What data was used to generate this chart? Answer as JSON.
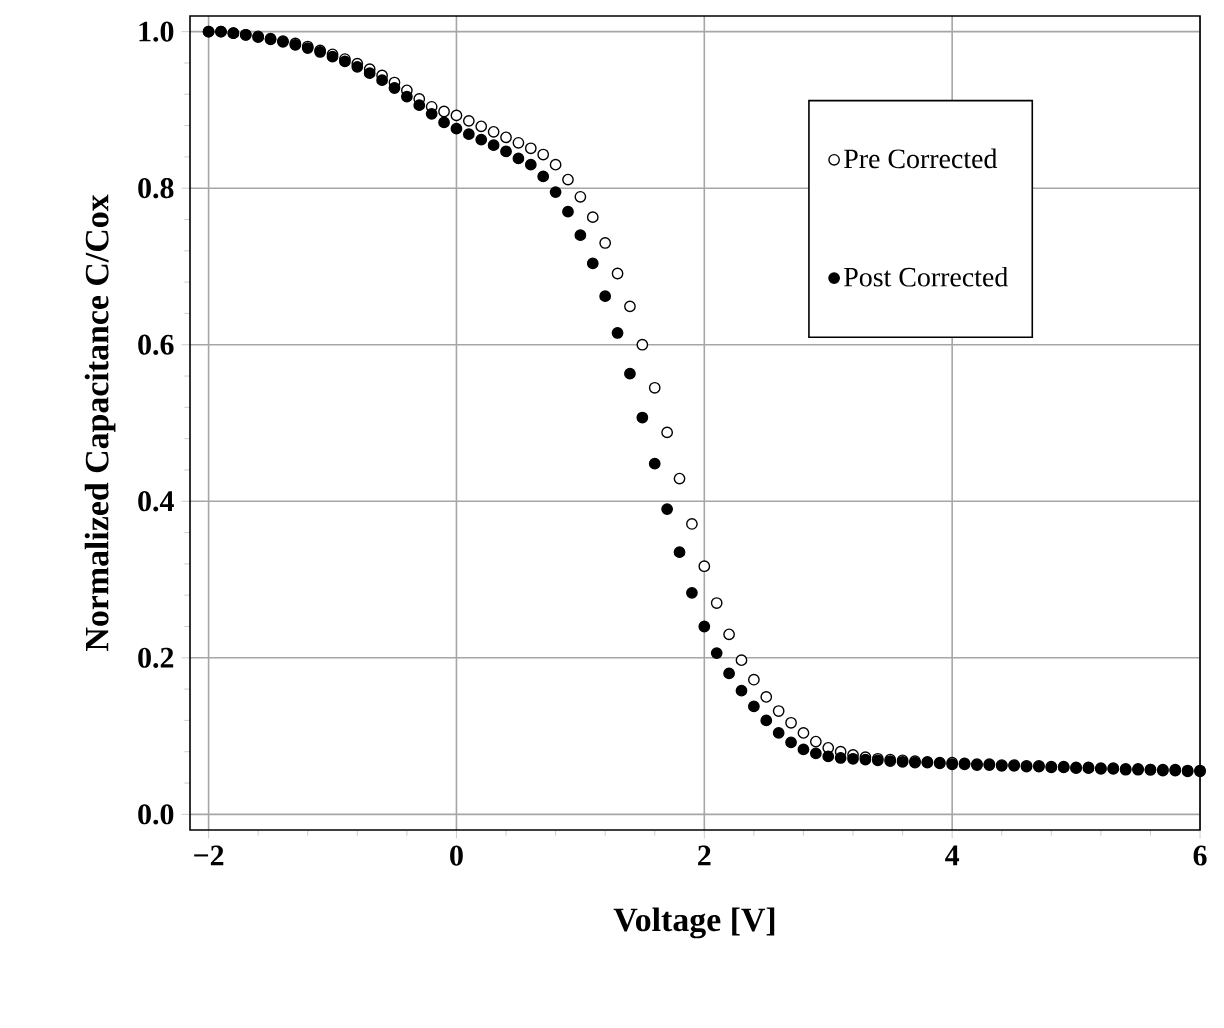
{
  "chart_data": {
    "type": "scatter",
    "xlabel": "Voltage [V]",
    "ylabel": "Normalized Capacitance C/Cox",
    "x": [
      -2.0,
      -1.9,
      -1.8,
      -1.7,
      -1.6,
      -1.5,
      -1.4,
      -1.3,
      -1.2,
      -1.1,
      -1.0,
      -0.9,
      -0.8,
      -0.7,
      -0.6,
      -0.5,
      -0.4,
      -0.3,
      -0.2,
      -0.1,
      0.0,
      0.1,
      0.2,
      0.3,
      0.4,
      0.5,
      0.6,
      0.7,
      0.8,
      0.9,
      1.0,
      1.1,
      1.2,
      1.3,
      1.4,
      1.5,
      1.6,
      1.7,
      1.8,
      1.9,
      2.0,
      2.1,
      2.2,
      2.3,
      2.4,
      2.5,
      2.6,
      2.7,
      2.8,
      2.9,
      3.0,
      3.1,
      3.2,
      3.3,
      3.4,
      3.5,
      3.6,
      3.7,
      3.8,
      3.9,
      4.0,
      4.1,
      4.2,
      4.3,
      4.4,
      4.5,
      4.6,
      4.7,
      4.8,
      4.9,
      5.0,
      5.1,
      5.2,
      5.3,
      5.4,
      5.5,
      5.6,
      5.7,
      5.8,
      5.9,
      6.0
    ],
    "series": [
      {
        "name": "Pre Corrected",
        "color": "#000000",
        "values": [
          1.0,
          1.0,
          0.998,
          0.996,
          0.994,
          0.991,
          0.988,
          0.985,
          0.981,
          0.976,
          0.971,
          0.965,
          0.959,
          0.952,
          0.944,
          0.935,
          0.925,
          0.914,
          0.904,
          0.898,
          0.893,
          0.886,
          0.879,
          0.872,
          0.865,
          0.858,
          0.851,
          0.843,
          0.83,
          0.811,
          0.789,
          0.763,
          0.73,
          0.691,
          0.649,
          0.6,
          0.545,
          0.488,
          0.429,
          0.371,
          0.317,
          0.27,
          0.23,
          0.197,
          0.172,
          0.15,
          0.132,
          0.117,
          0.104,
          0.093,
          0.085,
          0.08,
          0.076,
          0.073,
          0.071,
          0.07,
          0.069,
          0.068,
          0.067,
          0.066,
          0.066,
          0.065,
          0.064,
          0.064,
          0.063,
          0.063,
          0.062,
          0.062,
          0.061,
          0.061,
          0.06,
          0.06,
          0.059,
          0.059,
          0.058,
          0.058,
          0.057,
          0.057,
          0.057,
          0.056,
          0.056
        ]
      },
      {
        "name": "Post Corrected",
        "color": "#000000",
        "values": [
          1.0,
          1.0,
          0.998,
          0.996,
          0.993,
          0.99,
          0.987,
          0.983,
          0.979,
          0.974,
          0.968,
          0.962,
          0.955,
          0.947,
          0.938,
          0.928,
          0.917,
          0.906,
          0.895,
          0.884,
          0.876,
          0.869,
          0.862,
          0.855,
          0.847,
          0.838,
          0.83,
          0.815,
          0.795,
          0.77,
          0.74,
          0.704,
          0.662,
          0.615,
          0.563,
          0.507,
          0.448,
          0.39,
          0.335,
          0.283,
          0.24,
          0.206,
          0.18,
          0.158,
          0.138,
          0.12,
          0.104,
          0.092,
          0.083,
          0.078,
          0.074,
          0.072,
          0.071,
          0.07,
          0.069,
          0.068,
          0.067,
          0.066,
          0.066,
          0.065,
          0.064,
          0.064,
          0.063,
          0.063,
          0.062,
          0.062,
          0.061,
          0.061,
          0.06,
          0.06,
          0.059,
          0.059,
          0.058,
          0.058,
          0.057,
          0.057,
          0.057,
          0.056,
          0.056,
          0.055,
          0.055
        ]
      }
    ],
    "xlim": [
      -2.15,
      6
    ],
    "ylim": [
      -0.02,
      1.02
    ],
    "xticks": [
      {
        "value": -2,
        "label": "−2"
      },
      0,
      2,
      4,
      6
    ],
    "yticks": [
      {
        "value": 0,
        "label": "0.0"
      },
      {
        "value": 0.2,
        "label": "0.2"
      },
      {
        "value": 0.4,
        "label": "0.4"
      },
      {
        "value": 0.6,
        "label": "0.6"
      },
      {
        "value": 0.8,
        "label": "0.8"
      },
      {
        "value": 1,
        "label": "1.0"
      }
    ],
    "grid": true,
    "legend": "top right",
    "marker": "circle"
  }
}
